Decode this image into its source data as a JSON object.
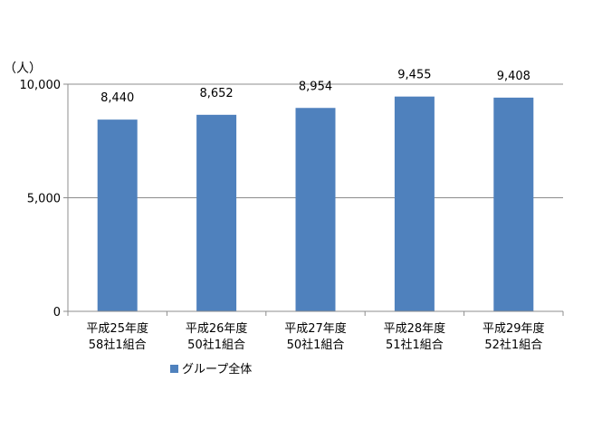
{
  "chart_data": {
    "type": "bar",
    "unit_label": "（人）",
    "categories": [
      [
        "平成25年度",
        "58社1組合"
      ],
      [
        "平成26年度",
        "50社1組合"
      ],
      [
        "平成27年度",
        "50社1組合"
      ],
      [
        "平成28年度",
        "51社1組合"
      ],
      [
        "平成29年度",
        "52社1組合"
      ]
    ],
    "series": [
      {
        "name": "グループ全体",
        "values": [
          8440,
          8652,
          8954,
          9455,
          9408
        ],
        "value_labels": [
          "8,440",
          "8,652",
          "8,954",
          "9,455",
          "9,408"
        ],
        "color": "#4f81bd"
      }
    ],
    "ylim": [
      0,
      10000
    ],
    "yticks": [
      0,
      5000,
      10000
    ],
    "ytick_labels": [
      "0",
      "5,000",
      "10,000"
    ],
    "grid": true,
    "legend_position": "bottom-left"
  }
}
